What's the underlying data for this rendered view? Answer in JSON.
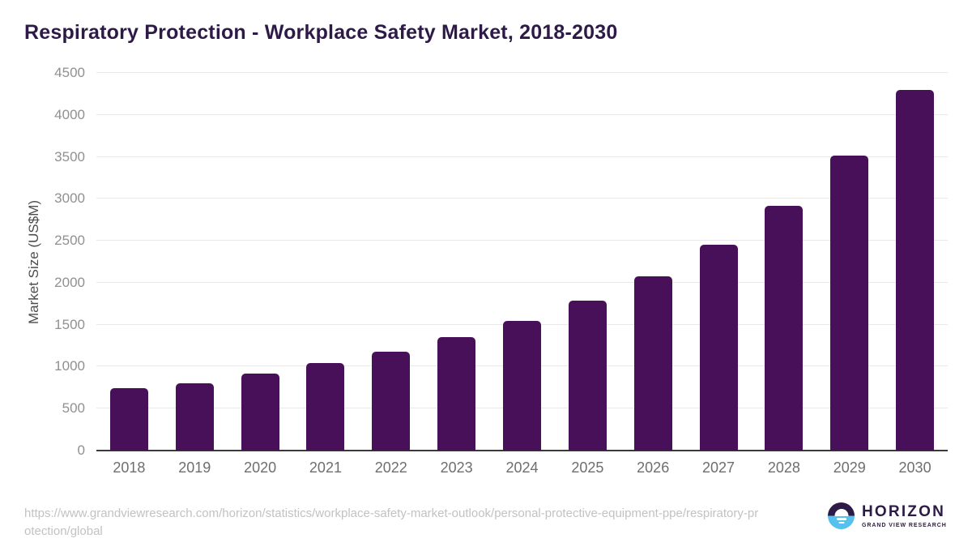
{
  "title": "Respiratory Protection - Workplace Safety Market, 2018-2030",
  "chart_data": {
    "type": "bar",
    "title": "Respiratory Protection - Workplace Safety Market, 2018-2030",
    "categories": [
      "2018",
      "2019",
      "2020",
      "2021",
      "2022",
      "2023",
      "2024",
      "2025",
      "2026",
      "2027",
      "2028",
      "2029",
      "2030"
    ],
    "values": [
      745,
      805,
      920,
      1040,
      1180,
      1350,
      1545,
      1790,
      2080,
      2450,
      2920,
      3515,
      4300
    ],
    "xlabel": "",
    "ylabel": "Market Size (US$M)",
    "ylim": [
      0,
      4500
    ],
    "ytick_step": 500,
    "grid": true,
    "legend": "none",
    "bar_color": "#49105a"
  },
  "footer": {
    "source_url": "https://www.grandviewresearch.com/horizon/statistics/workplace-safety-market-outlook/personal-protective-equipment-ppe/respiratory-protection/global",
    "logo_title": "HORIZON",
    "logo_subtitle": "GRAND VIEW RESEARCH"
  },
  "colors": {
    "bar": "#49105a",
    "title_text": "#2e1a47",
    "axis_line": "#3a3a3a",
    "gridline": "#e9e9e9",
    "y_tick_text": "#909090",
    "x_tick_text": "#6e6e6e",
    "axis_label_text": "#4d4d4d",
    "source_text": "#c2c2c2",
    "logo_dark": "#2e1a47",
    "logo_blue": "#56c1ec"
  }
}
